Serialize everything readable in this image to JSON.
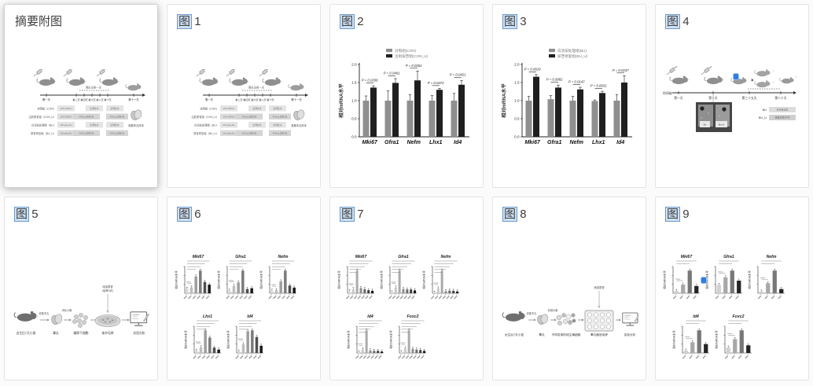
{
  "figure_prefix": "图",
  "highlight": {
    "term": "图",
    "bg": "#cfe3f8",
    "border": "#6d97c4"
  },
  "cards": [
    {
      "key": "abstract",
      "title": "摘要附图",
      "selected": true
    },
    {
      "key": "fig1",
      "num": "1"
    },
    {
      "key": "fig2",
      "num": "2"
    },
    {
      "key": "fig3",
      "num": "3"
    },
    {
      "key": "fig4",
      "num": "4"
    },
    {
      "key": "fig5",
      "num": "5"
    },
    {
      "key": "fig6",
      "num": "6"
    },
    {
      "key": "fig7",
      "num": "7"
    },
    {
      "key": "fig8",
      "num": "8"
    },
    {
      "key": "fig9",
      "num": "9"
    }
  ],
  "timeline_diagram": {
    "note": "隔天注射一次",
    "days": [
      "第一天",
      "第二天",
      "第四天",
      "第六天",
      "第八天",
      "第十天",
      "第十一天"
    ],
    "rows": [
      {
        "label": "对照组（CON）",
        "c1": "10% DMSO",
        "c2": "生理盐水",
        "c3": "生理盐水"
      },
      {
        "label": "注射尿苷组（CON_U）",
        "c1": "10% DMSO",
        "c2": "400mg 尿苷/天",
        "c3": "400mg 尿苷/天"
      },
      {
        "label": "白消安处理组（BU）",
        "c1": "25mg/kg Bu",
        "c2": "生理盐水",
        "c3": "生理盐水"
      },
      {
        "label": "尿苷修复组（BU_U）",
        "c1": "25mg/kg Bu",
        "c2": "400mg 尿苷/天",
        "c3": "400mg 尿苷/天"
      }
    ],
    "end_caption": "收集睾丸样本"
  },
  "fig4_diagram": {
    "axis_label": "时间轴",
    "days": [
      "第一天",
      "第十天",
      "第三十五天",
      "第八十天"
    ],
    "bu_label": "BU",
    "bu_text": "无仔鼠出生",
    "buu_label": "BU_U",
    "buu_text": "恢复生育/产仔",
    "cage_left": "Bu",
    "cage_right": "Bu+U",
    "female": "♀",
    "cross": "×"
  },
  "fig5_diagram": {
    "steps": [
      "出生后7天小鼠",
      "睾丸",
      "精原干细胞",
      "体外培养",
      "实验分析"
    ],
    "note1": "收集睾丸",
    "note2": "消化分离",
    "top_note_1": "添加尿苷",
    "top_note_2": "（培养3天）"
  },
  "fig8_diagram": {
    "steps": [
      "出生后7天小鼠",
      "睾丸",
      "不同发育阶段生精细胞",
      "睾丸器官培养",
      "实验分析"
    ],
    "note1": "收集睾丸",
    "note2": "机械分离",
    "top_note": "添加尿苷"
  },
  "chart_data": [
    {
      "key": "fig2",
      "type": "bar",
      "title": "",
      "xlabel": "",
      "ylabel": "相对mRNA水平",
      "ylim": [
        0,
        2.0
      ],
      "yticks": [
        0,
        0.5,
        1.0,
        1.5,
        2.0
      ],
      "categories": [
        "Mki67",
        "Gfra1",
        "Nefm",
        "Lhx1",
        "Id4"
      ],
      "series": [
        {
          "name": "对照组(CON)",
          "color": "#8f8f8f",
          "values": [
            1.0,
            1.0,
            1.0,
            1.0,
            1.0
          ],
          "errors": [
            0.13,
            0.27,
            0.17,
            0.14,
            0.2
          ]
        },
        {
          "name": "注射尿苷组(CON_U)",
          "color": "#1f1f1f",
          "values": [
            1.36,
            1.49,
            1.56,
            1.3,
            1.44
          ],
          "errors": [
            0.05,
            0.12,
            0.26,
            0.04,
            0.12
          ]
        }
      ],
      "p_values": [
        "P = 0.0206",
        "P = 0.0401",
        "P = 0.0261",
        "P = 0.0472",
        "P = 0.0421"
      ]
    },
    {
      "key": "fig3",
      "type": "bar",
      "title": "",
      "xlabel": "",
      "ylabel": "相对mRNA水平",
      "ylim": [
        0,
        2.0
      ],
      "yticks": [
        0,
        0.5,
        1.0,
        1.5,
        2.0
      ],
      "categories": [
        "Mki67",
        "Gfra1",
        "Nefm",
        "Lhx1",
        "Id4"
      ],
      "series": [
        {
          "name": "白消安处理组(BU)",
          "color": "#8f8f8f",
          "values": [
            1.0,
            1.04,
            1.0,
            0.99,
            1.0
          ],
          "errors": [
            0.12,
            0.1,
            0.12,
            0.03,
            0.17
          ]
        },
        {
          "name": "尿苷修复组(BU_U)",
          "color": "#1f1f1f",
          "values": [
            1.66,
            1.36,
            1.31,
            1.21,
            1.5
          ],
          "errors": [
            0.06,
            0.07,
            0.06,
            0.05,
            0.19
          ]
        }
      ],
      "p_values": [
        "P = 0.0019",
        "P = 0.0082",
        "P = 0.0147",
        "P = 0.0031",
        "P = 0.0247"
      ]
    },
    {
      "key": "fig6",
      "type": "bar",
      "ylabel": "相对mRNA水平",
      "sig_lines": 4,
      "bar_colors": [
        "#d9d9d9",
        "#bdbdbd",
        "#9e9e9e",
        "#7b7b7b",
        "#4f4f4f",
        "#181818"
      ],
      "panels": [
        {
          "title": "Mki67",
          "values": [
            1,
            1.3,
            3.7,
            5,
            2.5,
            1.9
          ]
        },
        {
          "title": "Gfra1",
          "values": [
            1,
            2.9,
            4.3,
            9,
            1.7,
            2
          ]
        },
        {
          "title": "Nefm",
          "values": [
            1,
            1.2,
            4.6,
            8.8,
            3,
            2.2
          ]
        },
        {
          "title": "Lhx1",
          "values": [
            1,
            2.5,
            10,
            6.8,
            2.4,
            1.5
          ]
        },
        {
          "title": "Id4",
          "values": [
            0.5,
            3,
            7.5,
            7.8,
            5.5,
            2.5
          ]
        }
      ]
    },
    {
      "key": "fig7",
      "type": "bar",
      "ylabel": "相对mRNA水平",
      "sig_lines": 5,
      "bar_colors": [
        "#e0e0e0",
        "#c8c8c8",
        "#ababab",
        "#8d8d8d",
        "#6a6a6a",
        "#3d3d3d",
        "#141414"
      ],
      "panels": [
        {
          "title": "Mki67",
          "values": [
            1,
            2,
            11,
            2.5,
            2,
            1.5,
            1.2
          ]
        },
        {
          "title": "Gfra1",
          "values": [
            1,
            6,
            24,
            4.5,
            4,
            4,
            3
          ]
        },
        {
          "title": "Nefm",
          "values": [
            1,
            8,
            38,
            3.5,
            4.5,
            4,
            3
          ]
        },
        {
          "title": "Id4",
          "values": [
            1,
            5,
            31,
            3.5,
            3,
            3,
            2
          ]
        },
        {
          "title": "Foxc2",
          "values": [
            1,
            5.5,
            27,
            5,
            4,
            3.5,
            2.5
          ]
        }
      ]
    },
    {
      "key": "fig9",
      "type": "bar",
      "ylabel": "相对mRNA水平",
      "sig_lines": 2,
      "bar_colors": [
        "#d0d0d0",
        "#a8a8a8",
        "#787878",
        "#242424"
      ],
      "panels": [
        {
          "title": "Mki67",
          "values": [
            1,
            3.8,
            10,
            3.2
          ]
        },
        {
          "title": "Gfra1",
          "values": [
            1,
            1.9,
            2.7,
            1.5
          ]
        },
        {
          "title": "Nefm",
          "values": [
            1,
            6,
            13.5,
            2.5
          ]
        },
        {
          "title": "Id4",
          "values": [
            2,
            9,
            19,
            7.5
          ]
        },
        {
          "title": "Foxc2",
          "values": [
            1.5,
            3.8,
            6.2,
            2.1
          ]
        }
      ]
    }
  ]
}
